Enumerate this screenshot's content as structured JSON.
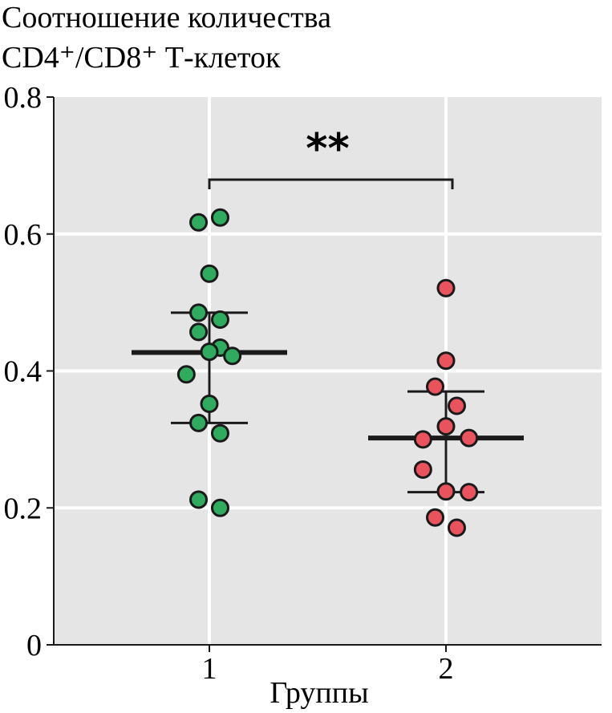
{
  "chart_data": {
    "type": "scatter",
    "ylabel": [
      "Соотношение количества",
      "CD4⁺/CD8⁺ Т-клеток"
    ],
    "xlabel": "Группы",
    "ylim": [
      0,
      0.8
    ],
    "yticks": [
      "0",
      "0.2",
      "0.4",
      "0.6",
      "0.8"
    ],
    "categories": [
      "1",
      "2"
    ],
    "grid": true,
    "significance": "**",
    "series": [
      {
        "category": "1",
        "color": "#2faa5f",
        "median": 0.427,
        "q1": 0.324,
        "q3": 0.485,
        "points": [
          {
            "offset": -0.04,
            "y": 0.617
          },
          {
            "offset": 0.04,
            "y": 0.624
          },
          {
            "offset": 0.0,
            "y": 0.542
          },
          {
            "offset": -0.04,
            "y": 0.485
          },
          {
            "offset": 0.04,
            "y": 0.475
          },
          {
            "offset": -0.04,
            "y": 0.457
          },
          {
            "offset": 0.04,
            "y": 0.434
          },
          {
            "offset": 0.0,
            "y": 0.428
          },
          {
            "offset": 0.085,
            "y": 0.422
          },
          {
            "offset": -0.085,
            "y": 0.395
          },
          {
            "offset": 0.0,
            "y": 0.352
          },
          {
            "offset": -0.04,
            "y": 0.324
          },
          {
            "offset": 0.04,
            "y": 0.309
          },
          {
            "offset": -0.04,
            "y": 0.212
          },
          {
            "offset": 0.04,
            "y": 0.2
          }
        ]
      },
      {
        "category": "2",
        "color": "#e9535e",
        "median": 0.302,
        "q1": 0.223,
        "q3": 0.37,
        "points": [
          {
            "offset": 0.0,
            "y": 0.521
          },
          {
            "offset": 0.0,
            "y": 0.415
          },
          {
            "offset": -0.04,
            "y": 0.377
          },
          {
            "offset": 0.04,
            "y": 0.349
          },
          {
            "offset": 0.0,
            "y": 0.319
          },
          {
            "offset": -0.085,
            "y": 0.3
          },
          {
            "offset": 0.085,
            "y": 0.302
          },
          {
            "offset": -0.085,
            "y": 0.256
          },
          {
            "offset": 0.0,
            "y": 0.224
          },
          {
            "offset": 0.085,
            "y": 0.223
          },
          {
            "offset": -0.04,
            "y": 0.186
          },
          {
            "offset": 0.04,
            "y": 0.171
          }
        ]
      }
    ]
  }
}
